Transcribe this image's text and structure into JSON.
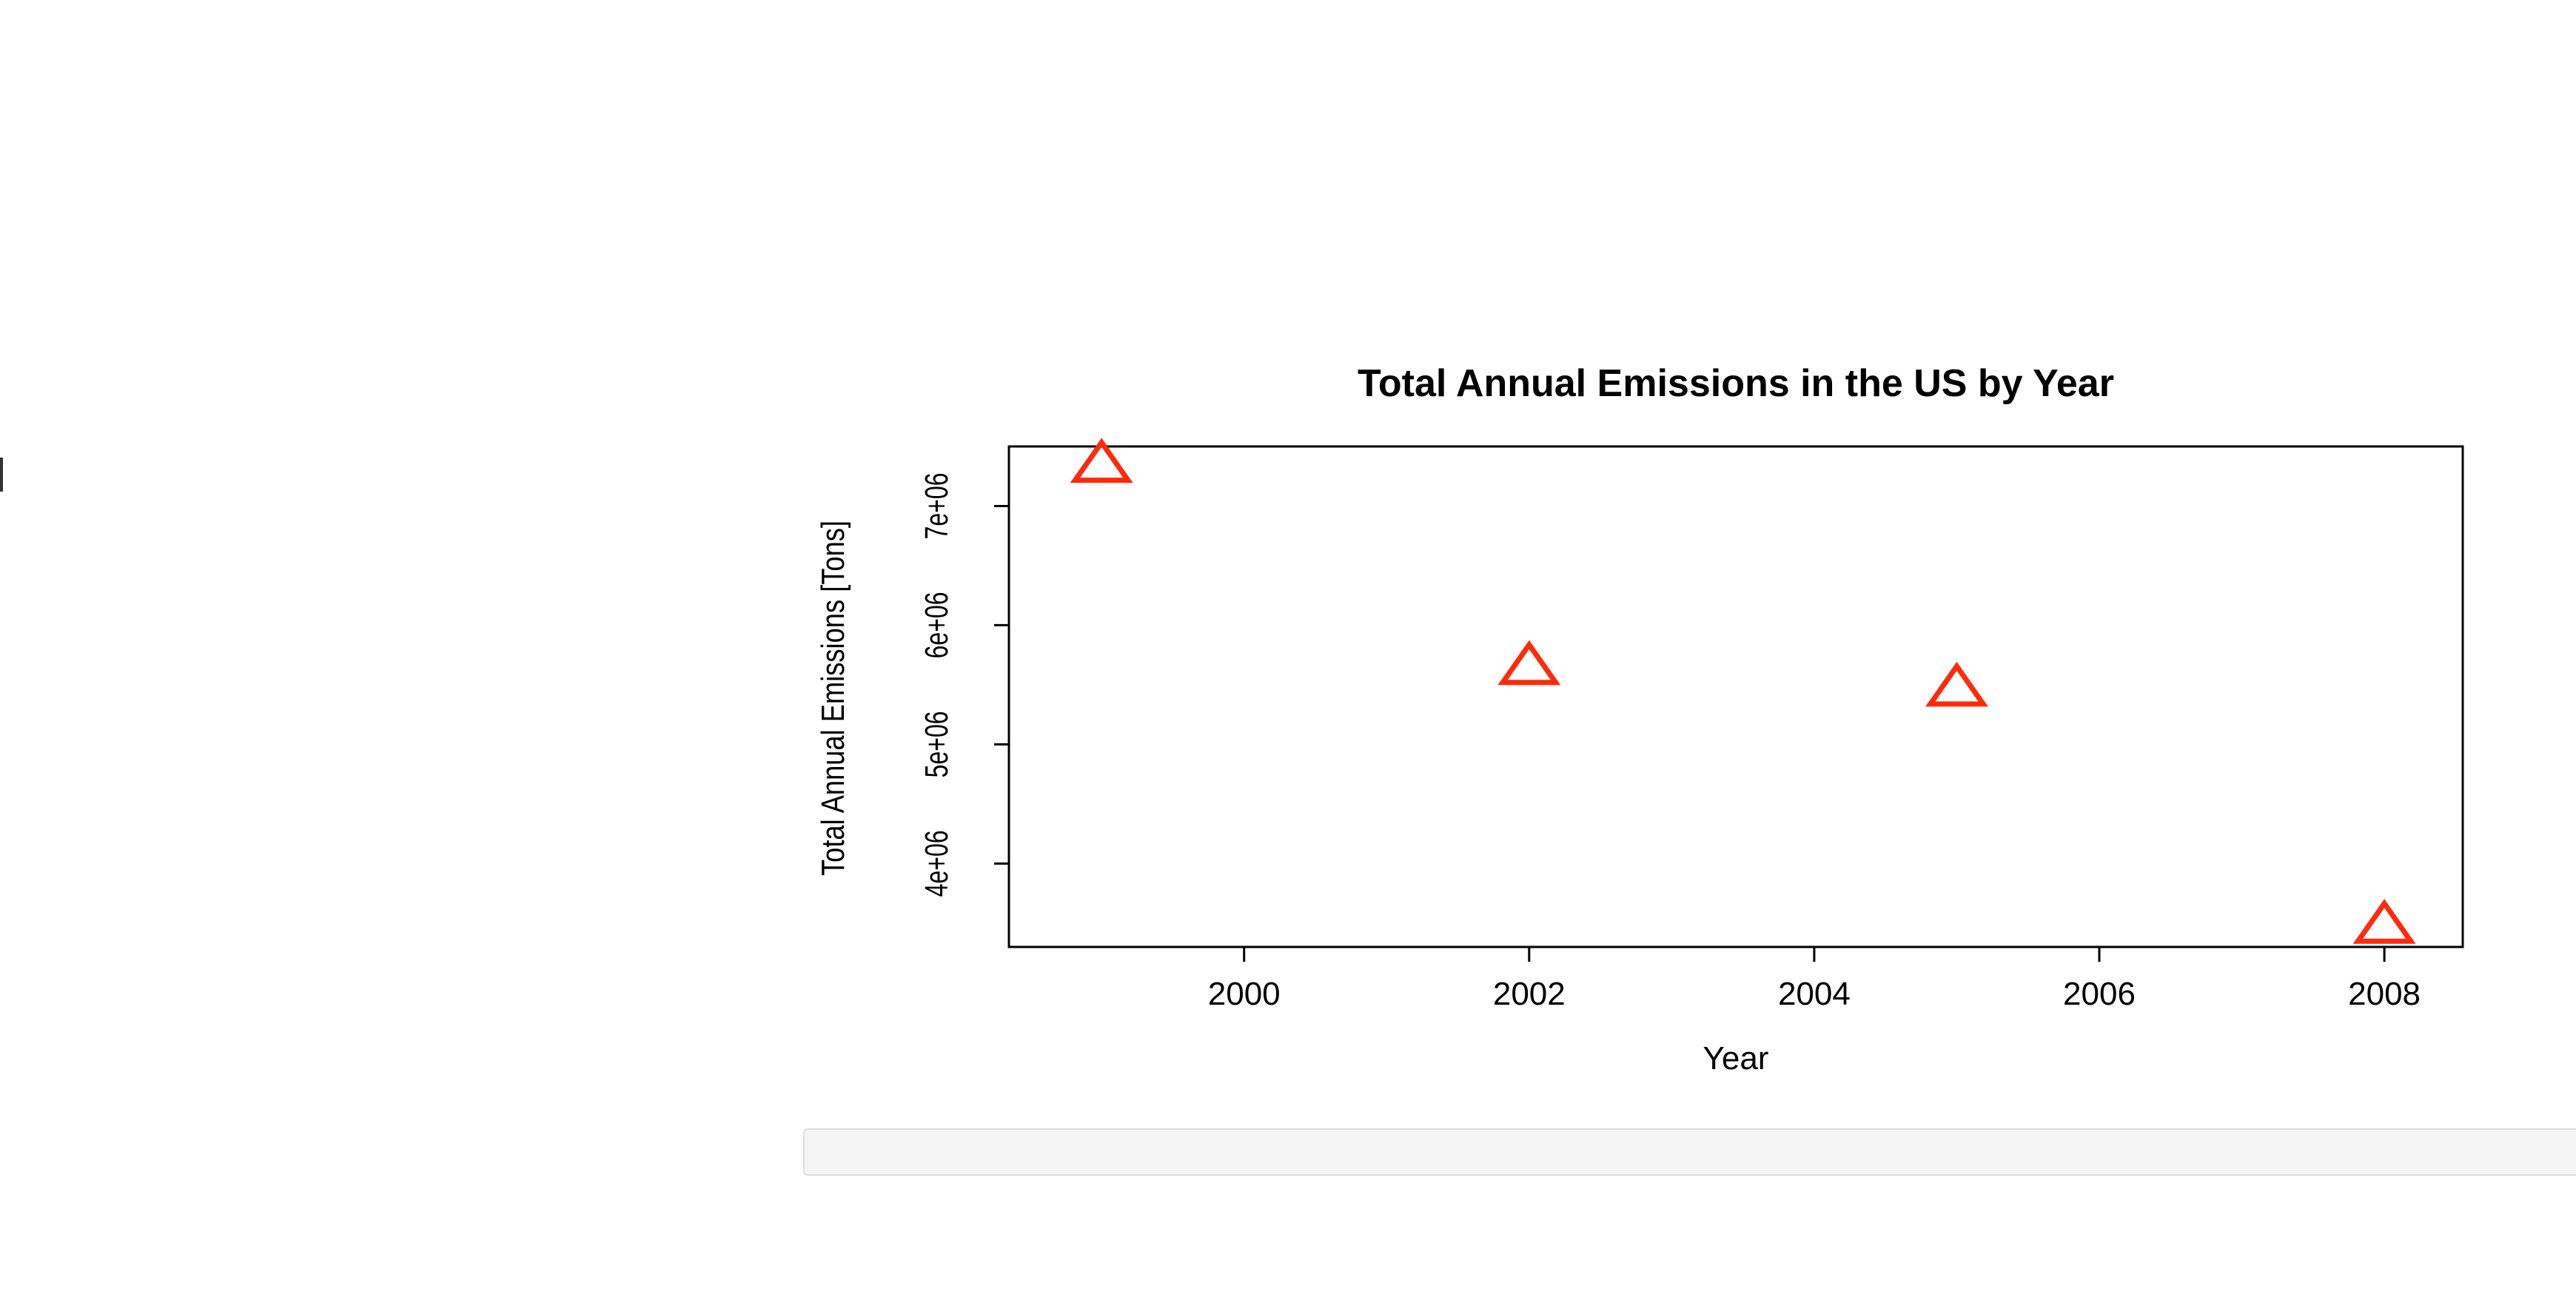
{
  "chart_data": {
    "type": "scatter",
    "title": "Total Annual Emissions in the US by Year",
    "xlabel": "Year",
    "ylabel": "Total Annual Emissions [Tons]",
    "x": [
      1999,
      2002,
      2005,
      2008
    ],
    "series": [
      {
        "values": [
          7332967,
          5635780,
          5454703,
          3464206
        ],
        "color": "#ff2a0c",
        "marker": "open-triangle"
      }
    ],
    "xlim": [
      1998.35,
      2008.55
    ],
    "ylim": [
      3300000,
      7500000
    ],
    "xticks": [
      2000,
      2002,
      2004,
      2006,
      2008
    ],
    "xtick_labels": [
      "2000",
      "2002",
      "2004",
      "2006",
      "2008"
    ],
    "yticks": [
      4000000,
      5000000,
      6000000,
      7000000
    ],
    "ytick_labels": [
      "4e+06",
      "5e+06",
      "6e+06",
      "7e+06"
    ],
    "grid": false,
    "legend": "none"
  }
}
